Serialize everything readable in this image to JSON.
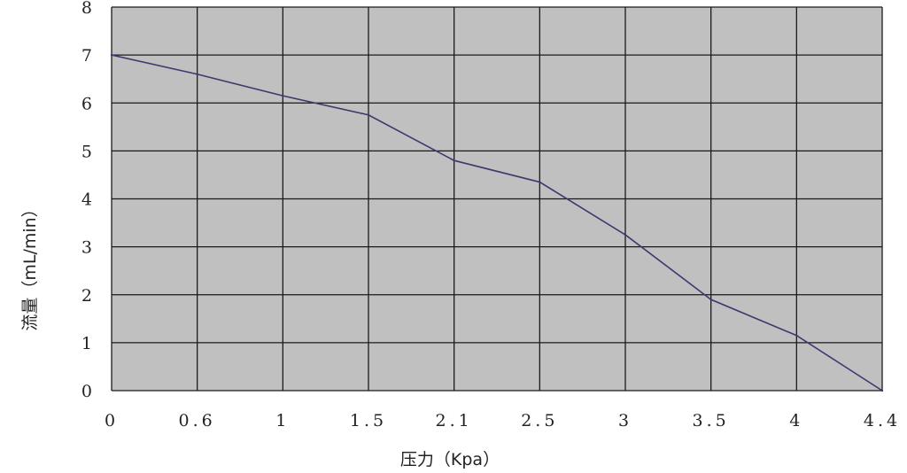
{
  "chart_data": {
    "type": "line",
    "title": "",
    "xlabel": "压力（Kpa）",
    "ylabel": "流量（mL/min）",
    "x_tick_labels": [
      "0",
      "0.6",
      "1",
      "1.5",
      "2.1",
      "2.5",
      "3",
      "3.5",
      "4",
      "4.4"
    ],
    "y_tick_labels": [
      "0",
      "1",
      "2",
      "3",
      "4",
      "5",
      "6",
      "7",
      "8"
    ],
    "ylim": [
      0,
      8
    ],
    "grid": true,
    "plot_background": "#c0c0c0",
    "grid_color": "#1a1a1a",
    "line_color": "#3a3a6e",
    "series": [
      {
        "x": [
          "0",
          "0.6",
          "1",
          "1.5",
          "2.1",
          "2.5",
          "3",
          "3.5",
          "4",
          "4.4"
        ],
        "values": [
          7.0,
          6.6,
          6.15,
          5.75,
          4.8,
          4.35,
          3.25,
          1.9,
          1.15,
          0.0
        ]
      }
    ]
  }
}
